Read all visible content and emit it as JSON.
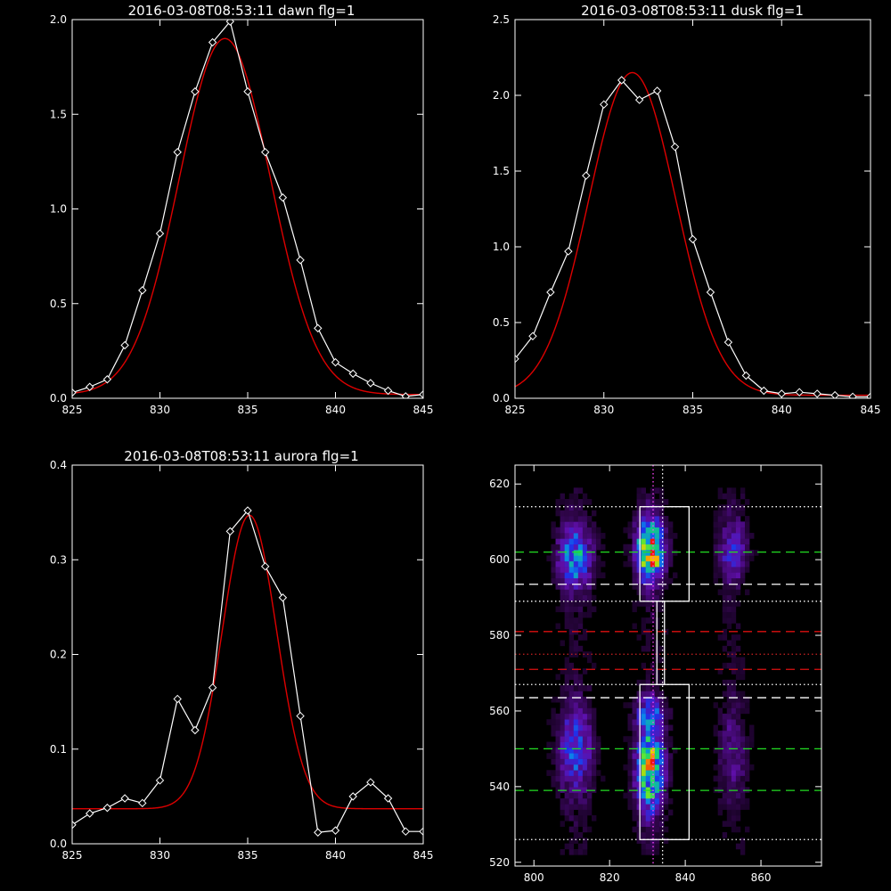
{
  "chart_data": [
    {
      "type": "line",
      "title": "2016-03-08T08:53:11 dawn flg=1",
      "xlim": [
        825,
        845
      ],
      "ylim": [
        0,
        2.0
      ],
      "xticks": [
        "825",
        "830",
        "835",
        "840",
        "845"
      ],
      "yticks": [
        "0.0",
        "0.5",
        "1.0",
        "1.5",
        "2.0"
      ],
      "xtick_values": [
        825,
        830,
        835,
        840,
        845
      ],
      "ytick_values": [
        0,
        0.5,
        1.0,
        1.5,
        2.0
      ],
      "series": [
        {
          "color": "#ffffff",
          "marker": "diamond",
          "x": [
            825,
            826,
            827,
            828,
            829,
            830,
            831,
            832,
            833,
            834,
            835,
            836,
            837,
            838,
            839,
            840,
            841,
            842,
            843,
            844,
            845
          ],
          "y": [
            0.03,
            0.06,
            0.1,
            0.28,
            0.57,
            0.87,
            1.3,
            1.62,
            1.88,
            1.99,
            1.62,
            1.3,
            1.06,
            0.73,
            0.37,
            0.19,
            0.13,
            0.08,
            0.04,
            0.01,
            0.02
          ]
        },
        {
          "color": "#dd0000",
          "fit": "gaussian",
          "amplitude": 1.88,
          "center": 833.7,
          "sigma": 2.6,
          "offset": 0.02
        }
      ]
    },
    {
      "type": "line",
      "title": "2016-03-08T08:53:11 dusk flg=1",
      "xlim": [
        825,
        845
      ],
      "ylim": [
        0,
        2.5
      ],
      "xticks": [
        "825",
        "830",
        "835",
        "840",
        "845"
      ],
      "yticks": [
        "0.0",
        "0.5",
        "1.0",
        "1.5",
        "2.0",
        "2.5"
      ],
      "xtick_values": [
        825,
        830,
        835,
        840,
        845
      ],
      "ytick_values": [
        0,
        0.5,
        1.0,
        1.5,
        2.0,
        2.5
      ],
      "series": [
        {
          "color": "#ffffff",
          "marker": "diamond",
          "x": [
            825,
            826,
            827,
            828,
            829,
            830,
            831,
            832,
            833,
            834,
            835,
            836,
            837,
            838,
            839,
            840,
            841,
            842,
            843,
            844,
            845
          ],
          "y": [
            0.26,
            0.41,
            0.7,
            0.97,
            1.47,
            1.94,
            2.1,
            1.97,
            2.03,
            1.66,
            1.05,
            0.7,
            0.37,
            0.15,
            0.05,
            0.03,
            0.04,
            0.03,
            0.02,
            0.01,
            0.01
          ]
        },
        {
          "color": "#dd0000",
          "fit": "gaussian",
          "amplitude": 2.13,
          "center": 831.6,
          "sigma": 2.45,
          "offset": 0.02
        }
      ]
    },
    {
      "type": "line",
      "title": "2016-03-08T08:53:11 aurora flg=1",
      "xlim": [
        825,
        845
      ],
      "ylim": [
        0,
        0.4
      ],
      "xticks": [
        "825",
        "830",
        "835",
        "840",
        "845"
      ],
      "yticks": [
        "0.0",
        "0.1",
        "0.2",
        "0.3",
        "0.4"
      ],
      "xtick_values": [
        825,
        830,
        835,
        840,
        845
      ],
      "ytick_values": [
        0,
        0.1,
        0.2,
        0.3,
        0.4
      ],
      "series": [
        {
          "color": "#ffffff",
          "marker": "diamond",
          "x": [
            825,
            826,
            827,
            828,
            829,
            830,
            831,
            832,
            833,
            834,
            835,
            836,
            837,
            838,
            839,
            840,
            841,
            842,
            843,
            844,
            845
          ],
          "y": [
            0.02,
            0.032,
            0.038,
            0.048,
            0.043,
            0.067,
            0.153,
            0.12,
            0.165,
            0.33,
            0.352,
            0.293,
            0.26,
            0.135,
            0.012,
            0.014,
            0.05,
            0.065,
            0.048,
            0.013,
            0.013
          ]
        },
        {
          "color": "#dd0000",
          "fit": "gaussian",
          "amplitude": 0.31,
          "center": 835.1,
          "sigma": 1.55,
          "offset": 0.037
        }
      ]
    },
    {
      "type": "heatmap",
      "xlim": [
        795,
        876
      ],
      "ylim": [
        519,
        625
      ],
      "xticks": [
        "800",
        "820",
        "840",
        "860"
      ],
      "yticks": [
        "520",
        "540",
        "560",
        "580",
        "600",
        "620"
      ],
      "xtick_values": [
        800,
        820,
        840,
        860
      ],
      "ytick_values": [
        520,
        540,
        560,
        580,
        600,
        620
      ],
      "emission_bands": [
        {
          "x": 811,
          "width": 3.0,
          "segments": [
            {
              "y": 601,
              "s": 6,
              "a": 0.55
            },
            {
              "y": 550,
              "s": 8,
              "a": 0.4
            }
          ]
        },
        {
          "x": 831,
          "width": 2.5,
          "segments": [
            {
              "y": 603,
              "s": 5.5,
              "a": 1.0
            },
            {
              "y": 545,
              "s": 8,
              "a": 0.82
            },
            {
              "y": 560,
              "s": 3,
              "a": 0.35
            }
          ]
        },
        {
          "x": 853,
          "width": 2.5,
          "segments": [
            {
              "y": 603,
              "s": 6,
              "a": 0.3
            },
            {
              "y": 549,
              "s": 8,
              "a": 0.18
            }
          ]
        }
      ],
      "boxes": [
        {
          "x0": 828,
          "x1": 841,
          "y0": 589,
          "y1": 614,
          "color": "#ffffff"
        },
        {
          "x0": 832.5,
          "x1": 834.5,
          "y0": 567,
          "y1": 589,
          "color": "#ffffff"
        },
        {
          "x0": 828,
          "x1": 841,
          "y0": 526,
          "y1": 567,
          "color": "#ffffff"
        }
      ],
      "hlines": [
        {
          "y": 614,
          "style": "dotted",
          "color": "#ffffff"
        },
        {
          "y": 602,
          "style": "dashed",
          "color": "#22dd22"
        },
        {
          "y": 593.5,
          "style": "dashed",
          "color": "#ffffff"
        },
        {
          "y": 589,
          "style": "dotted",
          "color": "#ffffff"
        },
        {
          "y": 581,
          "style": "dashed",
          "color": "#dd1111"
        },
        {
          "y": 575,
          "style": "dotted",
          "color": "#cc2222"
        },
        {
          "y": 571,
          "style": "dashed",
          "color": "#dd1111"
        },
        {
          "y": 567,
          "style": "dotted",
          "color": "#ffffff"
        },
        {
          "y": 563.5,
          "style": "dashed",
          "color": "#ffffff"
        },
        {
          "y": 550,
          "style": "dashed",
          "color": "#22dd22"
        },
        {
          "y": 539,
          "style": "dashed",
          "color": "#22dd22"
        },
        {
          "y": 526,
          "style": "dotted",
          "color": "#ffffff"
        }
      ],
      "vlines": [
        {
          "x": 831.5,
          "style": "dotted",
          "color": "#ff44ff"
        },
        {
          "x": 834,
          "style": "dotted",
          "color": "#ffffff"
        }
      ]
    }
  ]
}
